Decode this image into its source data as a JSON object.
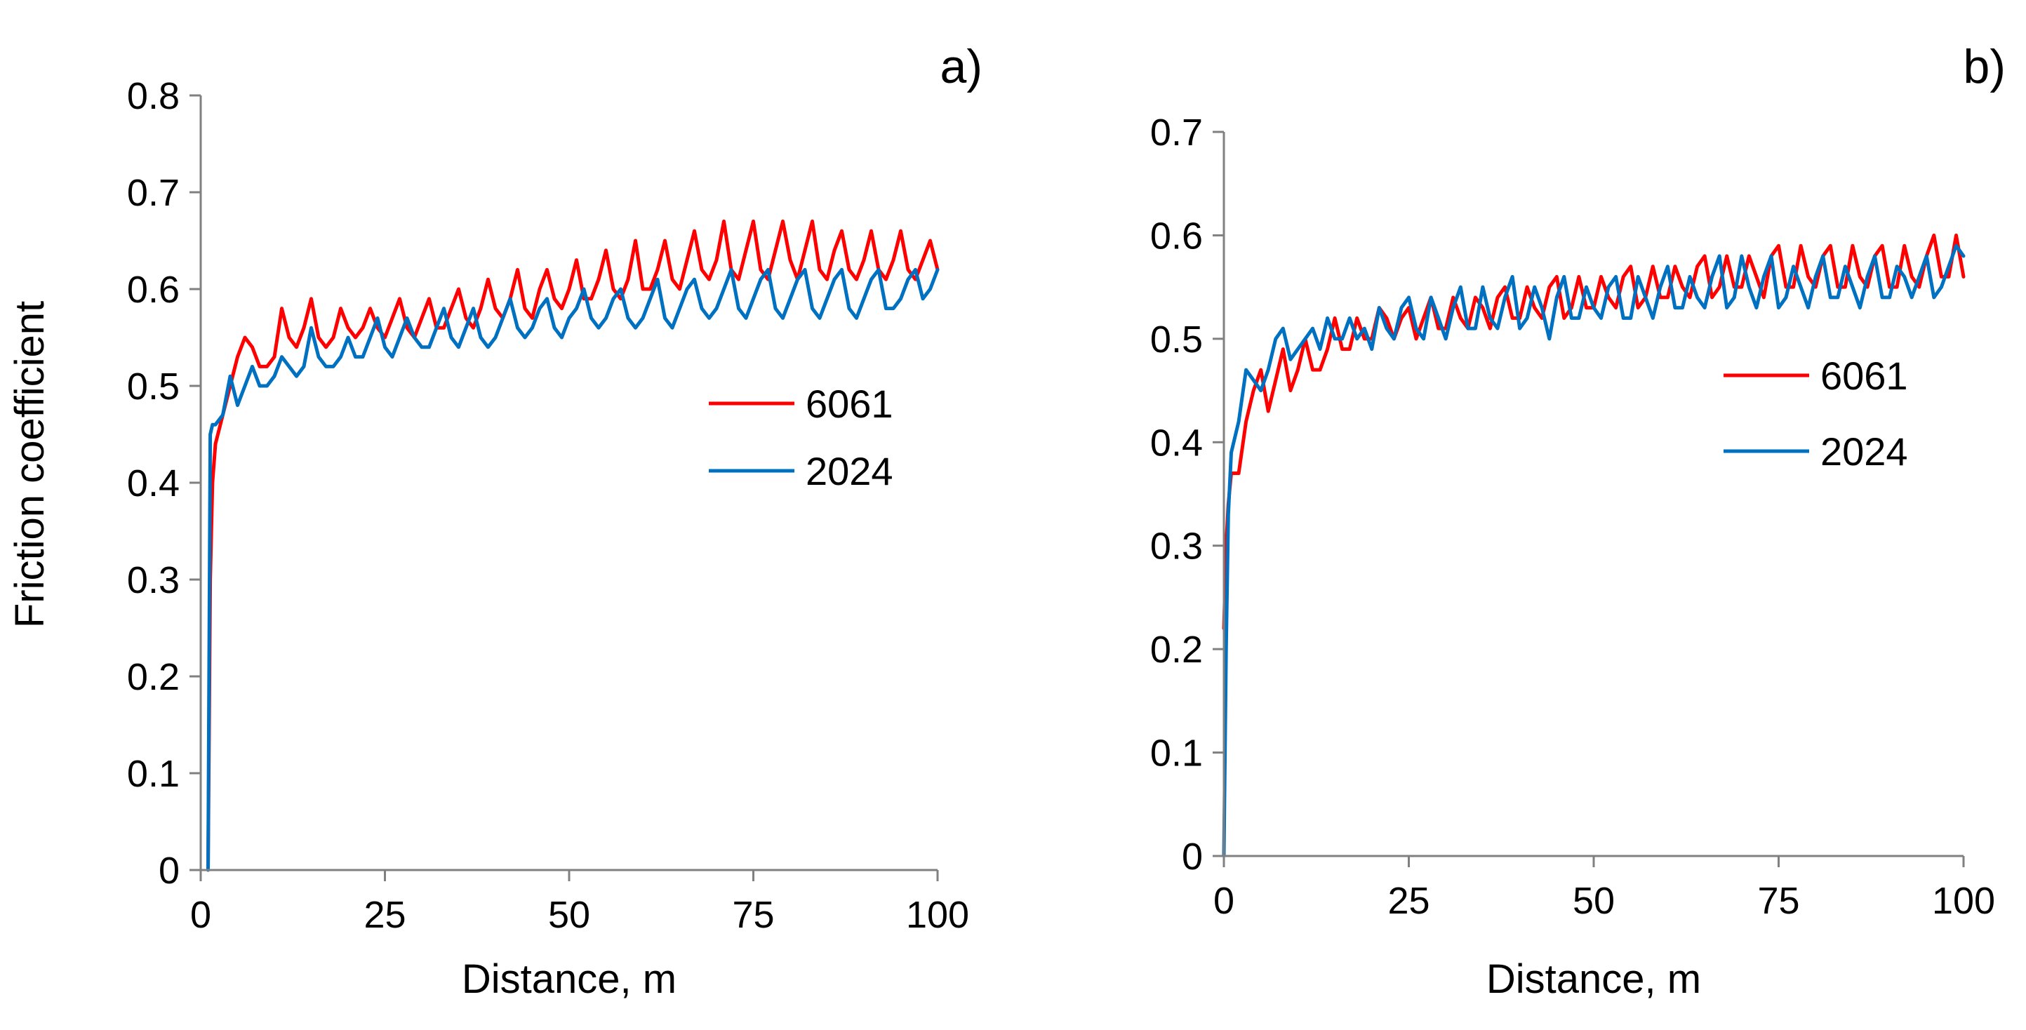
{
  "chart_data": [
    {
      "panel": "a)",
      "type": "line",
      "title": "",
      "xlabel": "Distance, m",
      "ylabel": "Friction coefficient",
      "xlim": [
        0,
        100
      ],
      "ylim": [
        0,
        0.8
      ],
      "xticks": [
        0,
        25,
        50,
        75,
        100
      ],
      "yticks": [
        0,
        0.1,
        0.2,
        0.3,
        0.4,
        0.5,
        0.6,
        0.7,
        0.8
      ],
      "x_tick_labels": [
        "0",
        "25",
        "50",
        "75",
        "100"
      ],
      "y_tick_labels": [
        "0",
        "0.1",
        "0.2",
        "0.3",
        "0.4",
        "0.5",
        "0.6",
        "0.7",
        "0.8"
      ],
      "legend_position": "right",
      "series": [
        {
          "name": "6061",
          "color": "#ff0000",
          "x": [
            1,
            1.3,
            1.6,
            2,
            3,
            4,
            5,
            6,
            7,
            8,
            9,
            10,
            11,
            12,
            13,
            14,
            15,
            16,
            17,
            18,
            19,
            20,
            21,
            22,
            23,
            24,
            25,
            26,
            27,
            28,
            29,
            30,
            31,
            32,
            33,
            34,
            35,
            36,
            37,
            38,
            39,
            40,
            41,
            42,
            43,
            44,
            45,
            46,
            47,
            48,
            49,
            50,
            51,
            52,
            53,
            54,
            55,
            56,
            57,
            58,
            59,
            60,
            61,
            62,
            63,
            64,
            65,
            66,
            67,
            68,
            69,
            70,
            71,
            72,
            73,
            74,
            75,
            76,
            77,
            78,
            79,
            80,
            81,
            82,
            83,
            84,
            85,
            86,
            87,
            88,
            89,
            90,
            91,
            92,
            93,
            94,
            95,
            96,
            97,
            98,
            99,
            100
          ],
          "y": [
            0,
            0.3,
            0.4,
            0.44,
            0.47,
            0.5,
            0.53,
            0.55,
            0.54,
            0.52,
            0.52,
            0.53,
            0.58,
            0.55,
            0.54,
            0.56,
            0.59,
            0.55,
            0.54,
            0.55,
            0.58,
            0.56,
            0.55,
            0.56,
            0.58,
            0.56,
            0.55,
            0.57,
            0.59,
            0.56,
            0.55,
            0.57,
            0.59,
            0.56,
            0.56,
            0.58,
            0.6,
            0.57,
            0.56,
            0.58,
            0.61,
            0.58,
            0.57,
            0.59,
            0.62,
            0.58,
            0.57,
            0.6,
            0.62,
            0.59,
            0.58,
            0.6,
            0.63,
            0.59,
            0.59,
            0.61,
            0.64,
            0.6,
            0.59,
            0.61,
            0.65,
            0.6,
            0.6,
            0.62,
            0.65,
            0.61,
            0.6,
            0.63,
            0.66,
            0.62,
            0.61,
            0.63,
            0.67,
            0.62,
            0.61,
            0.64,
            0.67,
            0.62,
            0.61,
            0.64,
            0.67,
            0.63,
            0.61,
            0.64,
            0.67,
            0.62,
            0.61,
            0.64,
            0.66,
            0.62,
            0.61,
            0.63,
            0.66,
            0.62,
            0.61,
            0.63,
            0.66,
            0.62,
            0.61,
            0.63,
            0.65,
            0.62
          ]
        },
        {
          "name": "2024",
          "color": "#0070c0",
          "x": [
            1,
            1.3,
            1.6,
            2,
            3,
            4,
            5,
            6,
            7,
            8,
            9,
            10,
            11,
            12,
            13,
            14,
            15,
            16,
            17,
            18,
            19,
            20,
            21,
            22,
            23,
            24,
            25,
            26,
            27,
            28,
            29,
            30,
            31,
            32,
            33,
            34,
            35,
            36,
            37,
            38,
            39,
            40,
            41,
            42,
            43,
            44,
            45,
            46,
            47,
            48,
            49,
            50,
            51,
            52,
            53,
            54,
            55,
            56,
            57,
            58,
            59,
            60,
            61,
            62,
            63,
            64,
            65,
            66,
            67,
            68,
            69,
            70,
            71,
            72,
            73,
            74,
            75,
            76,
            77,
            78,
            79,
            80,
            81,
            82,
            83,
            84,
            85,
            86,
            87,
            88,
            89,
            90,
            91,
            92,
            93,
            94,
            95,
            96,
            97,
            98,
            99,
            100
          ],
          "y": [
            0,
            0.45,
            0.46,
            0.46,
            0.47,
            0.51,
            0.48,
            0.5,
            0.52,
            0.5,
            0.5,
            0.51,
            0.53,
            0.52,
            0.51,
            0.52,
            0.56,
            0.53,
            0.52,
            0.52,
            0.53,
            0.55,
            0.53,
            0.53,
            0.55,
            0.57,
            0.54,
            0.53,
            0.55,
            0.57,
            0.55,
            0.54,
            0.54,
            0.56,
            0.58,
            0.55,
            0.54,
            0.56,
            0.58,
            0.55,
            0.54,
            0.55,
            0.57,
            0.59,
            0.56,
            0.55,
            0.56,
            0.58,
            0.59,
            0.56,
            0.55,
            0.57,
            0.58,
            0.6,
            0.57,
            0.56,
            0.57,
            0.59,
            0.6,
            0.57,
            0.56,
            0.57,
            0.59,
            0.61,
            0.57,
            0.56,
            0.58,
            0.6,
            0.61,
            0.58,
            0.57,
            0.58,
            0.6,
            0.62,
            0.58,
            0.57,
            0.59,
            0.61,
            0.62,
            0.58,
            0.57,
            0.59,
            0.61,
            0.62,
            0.58,
            0.57,
            0.59,
            0.61,
            0.62,
            0.58,
            0.57,
            0.59,
            0.61,
            0.62,
            0.58,
            0.58,
            0.59,
            0.61,
            0.62,
            0.59,
            0.6,
            0.62
          ]
        }
      ]
    },
    {
      "panel": "b)",
      "type": "line",
      "title": "",
      "xlabel": "Distance, m",
      "ylabel": "",
      "xlim": [
        0,
        100
      ],
      "ylim": [
        0,
        0.7
      ],
      "xticks": [
        0,
        25,
        50,
        75,
        100
      ],
      "yticks": [
        0,
        0.1,
        0.2,
        0.3,
        0.4,
        0.5,
        0.6,
        0.7
      ],
      "x_tick_labels": [
        "0",
        "25",
        "50",
        "75",
        "100"
      ],
      "y_tick_labels": [
        "0",
        "0.1",
        "0.2",
        "0.3",
        "0.4",
        "0.5",
        "0.6",
        "0.7"
      ],
      "legend_position": "right",
      "series": [
        {
          "name": "6061",
          "color": "#ff0000",
          "x": [
            0,
            0.3,
            0.6,
            1,
            2,
            3,
            4,
            5,
            6,
            7,
            8,
            9,
            10,
            11,
            12,
            13,
            14,
            15,
            16,
            17,
            18,
            19,
            20,
            21,
            22,
            23,
            24,
            25,
            26,
            27,
            28,
            29,
            30,
            31,
            32,
            33,
            34,
            35,
            36,
            37,
            38,
            39,
            40,
            41,
            42,
            43,
            44,
            45,
            46,
            47,
            48,
            49,
            50,
            51,
            52,
            53,
            54,
            55,
            56,
            57,
            58,
            59,
            60,
            61,
            62,
            63,
            64,
            65,
            66,
            67,
            68,
            69,
            70,
            71,
            72,
            73,
            74,
            75,
            76,
            77,
            78,
            79,
            80,
            81,
            82,
            83,
            84,
            85,
            86,
            87,
            88,
            89,
            90,
            91,
            92,
            93,
            94,
            95,
            96,
            97,
            98,
            99,
            100
          ],
          "y": [
            0.22,
            0.3,
            0.34,
            0.37,
            0.37,
            0.42,
            0.45,
            0.47,
            0.43,
            0.46,
            0.49,
            0.45,
            0.47,
            0.5,
            0.47,
            0.47,
            0.49,
            0.52,
            0.49,
            0.49,
            0.52,
            0.5,
            0.5,
            0.53,
            0.52,
            0.5,
            0.52,
            0.53,
            0.5,
            0.52,
            0.54,
            0.51,
            0.51,
            0.54,
            0.52,
            0.51,
            0.54,
            0.53,
            0.51,
            0.54,
            0.55,
            0.52,
            0.52,
            0.55,
            0.53,
            0.52,
            0.55,
            0.56,
            0.52,
            0.53,
            0.56,
            0.53,
            0.53,
            0.56,
            0.54,
            0.53,
            0.56,
            0.57,
            0.53,
            0.54,
            0.57,
            0.54,
            0.54,
            0.57,
            0.55,
            0.54,
            0.57,
            0.58,
            0.54,
            0.55,
            0.58,
            0.55,
            0.55,
            0.58,
            0.56,
            0.54,
            0.58,
            0.59,
            0.55,
            0.55,
            0.59,
            0.56,
            0.55,
            0.58,
            0.59,
            0.55,
            0.55,
            0.59,
            0.56,
            0.55,
            0.58,
            0.59,
            0.55,
            0.55,
            0.59,
            0.56,
            0.55,
            0.58,
            0.6,
            0.56,
            0.56,
            0.6,
            0.56
          ]
        },
        {
          "name": "2024",
          "color": "#0070c0",
          "x": [
            0,
            0.3,
            0.6,
            1,
            2,
            3,
            4,
            5,
            6,
            7,
            8,
            9,
            10,
            11,
            12,
            13,
            14,
            15,
            16,
            17,
            18,
            19,
            20,
            21,
            22,
            23,
            24,
            25,
            26,
            27,
            28,
            29,
            30,
            31,
            32,
            33,
            34,
            35,
            36,
            37,
            38,
            39,
            40,
            41,
            42,
            43,
            44,
            45,
            46,
            47,
            48,
            49,
            50,
            51,
            52,
            53,
            54,
            55,
            56,
            57,
            58,
            59,
            60,
            61,
            62,
            63,
            64,
            65,
            66,
            67,
            68,
            69,
            70,
            71,
            72,
            73,
            74,
            75,
            76,
            77,
            78,
            79,
            80,
            81,
            82,
            83,
            84,
            85,
            86,
            87,
            88,
            89,
            90,
            91,
            92,
            93,
            94,
            95,
            96,
            97,
            98,
            99,
            100
          ],
          "y": [
            0,
            0.2,
            0.33,
            0.39,
            0.42,
            0.47,
            0.46,
            0.45,
            0.47,
            0.5,
            0.51,
            0.48,
            0.49,
            0.5,
            0.51,
            0.49,
            0.52,
            0.5,
            0.5,
            0.52,
            0.5,
            0.51,
            0.49,
            0.53,
            0.51,
            0.5,
            0.53,
            0.54,
            0.51,
            0.5,
            0.54,
            0.52,
            0.5,
            0.53,
            0.55,
            0.51,
            0.51,
            0.55,
            0.52,
            0.51,
            0.54,
            0.56,
            0.51,
            0.52,
            0.55,
            0.53,
            0.5,
            0.54,
            0.56,
            0.52,
            0.52,
            0.55,
            0.53,
            0.52,
            0.55,
            0.56,
            0.52,
            0.52,
            0.56,
            0.54,
            0.52,
            0.55,
            0.57,
            0.53,
            0.53,
            0.56,
            0.54,
            0.53,
            0.56,
            0.58,
            0.53,
            0.54,
            0.58,
            0.55,
            0.53,
            0.56,
            0.58,
            0.53,
            0.54,
            0.57,
            0.55,
            0.53,
            0.56,
            0.58,
            0.54,
            0.54,
            0.57,
            0.55,
            0.53,
            0.56,
            0.58,
            0.54,
            0.54,
            0.57,
            0.56,
            0.54,
            0.56,
            0.58,
            0.54,
            0.55,
            0.57,
            0.59,
            0.58
          ]
        }
      ]
    }
  ]
}
